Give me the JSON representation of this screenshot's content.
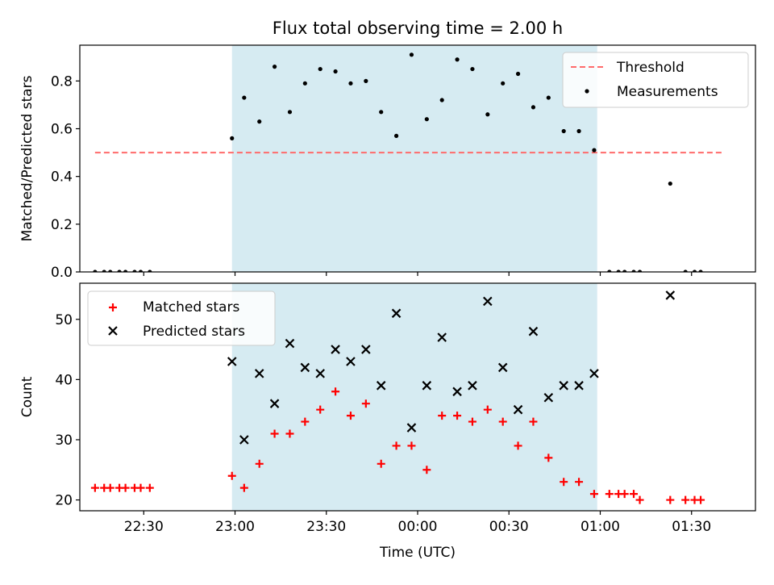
{
  "chart_data": [
    {
      "type": "scatter",
      "title": "Flux total observing time = 2.00 h",
      "xlabel": "",
      "ylabel": "Matched/Predicted stars",
      "ylim": [
        0,
        0.95
      ],
      "yticks": [
        0.0,
        0.2,
        0.4,
        0.6,
        0.8
      ],
      "ytick_labels": [
        "0.0",
        "0.2",
        "0.4",
        "0.6",
        "0.8"
      ],
      "xlim": [
        "22:09",
        "01:51"
      ],
      "xticks": [
        "22:30",
        "23:00",
        "23:30",
        "00:00",
        "00:30",
        "01:00",
        "01:30"
      ],
      "xtick_labels_shown": false,
      "grid": false,
      "legend": "top-right",
      "shaded_region": {
        "x_start": "22:59",
        "x_end": "00:59",
        "color": "#add8e6"
      },
      "threshold": {
        "name": "Threshold",
        "value": 0.5,
        "x_start": "22:14",
        "x_end": "01:40",
        "color": "#ff6b6b",
        "style": "dashed"
      },
      "series": [
        {
          "name": "Measurements",
          "marker": "dot",
          "color": "#000000",
          "x": [
            "22:14",
            "22:17",
            "22:19",
            "22:22",
            "22:24",
            "22:27",
            "22:29",
            "22:32",
            "22:59",
            "23:03",
            "23:08",
            "23:13",
            "23:18",
            "23:23",
            "23:28",
            "23:33",
            "23:38",
            "23:43",
            "23:48",
            "23:53",
            "23:58",
            "00:03",
            "00:08",
            "00:13",
            "00:18",
            "00:23",
            "00:28",
            "00:33",
            "00:38",
            "00:43",
            "00:48",
            "00:53",
            "00:58",
            "01:03",
            "01:06",
            "01:08",
            "01:11",
            "01:13",
            "01:23",
            "01:28",
            "01:31",
            "01:33"
          ],
          "values": [
            0,
            0,
            0,
            0,
            0,
            0,
            0,
            0,
            0.56,
            0.73,
            0.63,
            0.86,
            0.67,
            0.79,
            0.85,
            0.84,
            0.79,
            0.8,
            0.67,
            0.57,
            0.91,
            0.64,
            0.72,
            0.89,
            0.85,
            0.66,
            0.79,
            0.83,
            0.69,
            0.73,
            0.59,
            0.59,
            0.51,
            0,
            0,
            0,
            0,
            0,
            0.37,
            0,
            0,
            0
          ]
        }
      ]
    },
    {
      "type": "scatter",
      "title": "",
      "xlabel": "Time (UTC)",
      "ylabel": "Count",
      "ylim": [
        18.2,
        56
      ],
      "yticks": [
        20,
        30,
        40,
        50
      ],
      "ytick_labels": [
        "20",
        "30",
        "40",
        "50"
      ],
      "xlim": [
        "22:09",
        "01:51"
      ],
      "xticks": [
        "22:30",
        "23:00",
        "23:30",
        "00:00",
        "00:30",
        "01:00",
        "01:30"
      ],
      "xtick_labels": [
        "22:30",
        "23:00",
        "23:30",
        "00:00",
        "00:30",
        "01:00",
        "01:30"
      ],
      "grid": false,
      "legend": "top-left",
      "shaded_region": {
        "x_start": "22:59",
        "x_end": "00:59",
        "color": "#add8e6"
      },
      "series": [
        {
          "name": "Matched stars",
          "marker": "plus",
          "color": "#ff0000",
          "x": [
            "22:14",
            "22:17",
            "22:19",
            "22:22",
            "22:24",
            "22:27",
            "22:29",
            "22:32",
            "22:59",
            "23:03",
            "23:08",
            "23:13",
            "23:18",
            "23:23",
            "23:28",
            "23:33",
            "23:38",
            "23:43",
            "23:48",
            "23:53",
            "23:58",
            "00:03",
            "00:08",
            "00:13",
            "00:18",
            "00:23",
            "00:28",
            "00:33",
            "00:38",
            "00:43",
            "00:48",
            "00:53",
            "00:58",
            "01:03",
            "01:06",
            "01:08",
            "01:11",
            "01:13",
            "01:23",
            "01:28",
            "01:31",
            "01:33"
          ],
          "values": [
            22,
            22,
            22,
            22,
            22,
            22,
            22,
            22,
            24,
            22,
            26,
            31,
            31,
            33,
            35,
            38,
            34,
            36,
            26,
            29,
            29,
            25,
            34,
            34,
            33,
            35,
            33,
            29,
            33,
            27,
            23,
            23,
            21,
            21,
            21,
            21,
            21,
            20,
            20,
            20,
            20,
            20
          ]
        },
        {
          "name": "Predicted stars",
          "marker": "x",
          "color": "#000000",
          "x": [
            "22:59",
            "23:03",
            "23:08",
            "23:13",
            "23:18",
            "23:23",
            "23:28",
            "23:33",
            "23:38",
            "23:43",
            "23:48",
            "23:53",
            "23:58",
            "00:03",
            "00:08",
            "00:13",
            "00:18",
            "00:23",
            "00:28",
            "00:33",
            "00:38",
            "00:43",
            "00:48",
            "00:53",
            "00:58",
            "01:23"
          ],
          "values": [
            43,
            30,
            41,
            36,
            46,
            42,
            41,
            45,
            43,
            45,
            39,
            51,
            32,
            39,
            47,
            38,
            39,
            53,
            42,
            35,
            48,
            37,
            39,
            39,
            41,
            54
          ]
        }
      ]
    }
  ]
}
